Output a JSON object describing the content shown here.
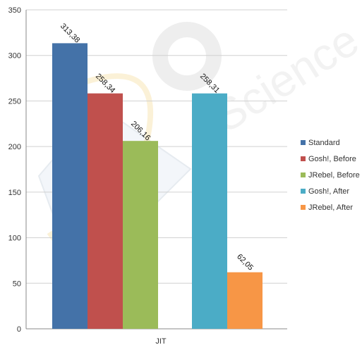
{
  "chart_data": {
    "type": "bar",
    "title": "",
    "xlabel": "",
    "ylabel": "",
    "categories": [
      "JIT"
    ],
    "series": [
      {
        "name": "Standard",
        "values": [
          313.38
        ],
        "color": "#4472A8",
        "label": "313,38"
      },
      {
        "name": "Gosh!, Before",
        "values": [
          258.34
        ],
        "color": "#C0504D",
        "label": "258,34"
      },
      {
        "name": "JRebel, Before",
        "values": [
          206.16
        ],
        "color": "#9BBB59",
        "label": "206,16"
      },
      {
        "name": "Gosh!, After",
        "values": [
          258.31
        ],
        "color": "#4BACC6",
        "label": "258,31"
      },
      {
        "name": "JRebel, After",
        "values": [
          62.05
        ],
        "color": "#F79646",
        "label": "62,05"
      }
    ],
    "ylim": [
      0,
      350
    ],
    "yticks": [
      0,
      50,
      100,
      150,
      200,
      250,
      300,
      350
    ],
    "grid": true,
    "legend": "right"
  },
  "watermark": {
    "text": "Science",
    "color": "#d9d9d9"
  }
}
